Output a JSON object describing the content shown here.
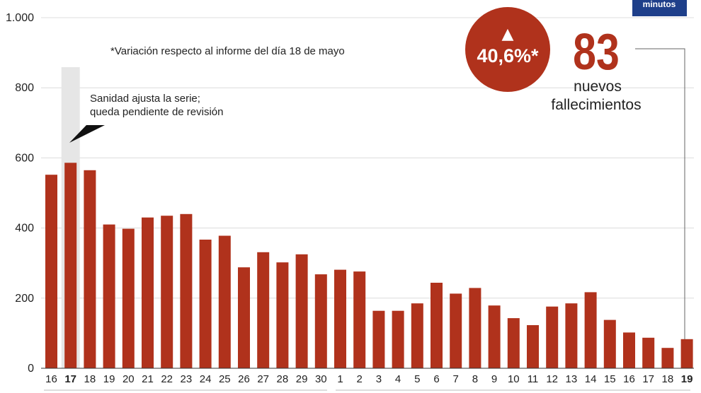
{
  "brand_badge": "minutos",
  "note": "*Variación respecto al informe del día 18 de mayo",
  "annotation": {
    "line1": "Sanidad ajusta la serie;",
    "line2": "queda pendiente de revisión"
  },
  "callout": {
    "percent": "40,6%*",
    "arrow": "▲",
    "number": "83",
    "label_line1": "nuevos",
    "label_line2": "fallecimientos"
  },
  "colors": {
    "bar": "#b0321c",
    "callout_circle": "#b0321c",
    "highlight_band": "#e6e6e6",
    "badge": "#1e3f8a"
  },
  "chart_data": {
    "type": "bar",
    "categories": [
      "16",
      "17",
      "18",
      "19",
      "20",
      "21",
      "22",
      "23",
      "24",
      "25",
      "26",
      "27",
      "28",
      "29",
      "30",
      "1",
      "2",
      "3",
      "4",
      "5",
      "6",
      "7",
      "8",
      "9",
      "10",
      "11",
      "12",
      "13",
      "14",
      "15",
      "16",
      "17",
      "18",
      "19"
    ],
    "bold_categories": [
      1,
      33
    ],
    "values": [
      552,
      586,
      565,
      410,
      398,
      430,
      435,
      440,
      367,
      378,
      288,
      331,
      302,
      325,
      268,
      281,
      276,
      164,
      164,
      185,
      244,
      213,
      229,
      179,
      143,
      123,
      176,
      185,
      217,
      138,
      102,
      87,
      58,
      83
    ],
    "ylim": [
      0,
      1000
    ],
    "yticks": [
      0,
      200,
      400,
      600,
      800,
      1000
    ],
    "ytick_labels": [
      "0",
      "200",
      "400",
      "600",
      "800",
      "1.000"
    ],
    "grid": true,
    "title": "",
    "xlabel": "",
    "ylabel": ""
  }
}
